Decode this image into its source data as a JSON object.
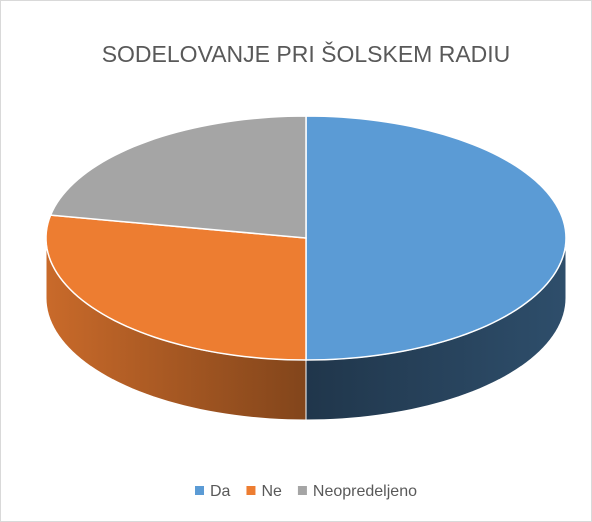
{
  "chart_data": {
    "type": "pie3d",
    "title": "SODELOVANJE PRI ŠOLSKEM RADIU",
    "categories": [
      "Da",
      "Ne",
      "Neopredeljeno"
    ],
    "values": [
      50,
      28,
      22
    ],
    "colors": [
      "#5b9bd5",
      "#ed7d31",
      "#a5a5a5"
    ],
    "legend": "bottom"
  }
}
